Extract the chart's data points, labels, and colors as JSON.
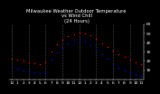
{
  "title": "Milwaukee Weather Outdoor Temperature\nvs Wind Chill\n(24 Hours)",
  "title_fontsize": 3.8,
  "hours": [
    0,
    1,
    2,
    3,
    4,
    5,
    6,
    7,
    8,
    9,
    10,
    11,
    12,
    13,
    14,
    15,
    16,
    17,
    18,
    19,
    20,
    21,
    22,
    23
  ],
  "temp": [
    22,
    21,
    20,
    19,
    18,
    17,
    19,
    30,
    38,
    43,
    47,
    49,
    51,
    50,
    48,
    44,
    39,
    35,
    31,
    27,
    24,
    21,
    19,
    17
  ],
  "wind_chill": [
    13,
    12,
    10,
    9,
    8,
    7,
    8,
    21,
    29,
    34,
    39,
    41,
    43,
    41,
    37,
    33,
    27,
    22,
    17,
    13,
    10,
    8,
    6,
    4
  ],
  "temp_color": "#ff0000",
  "wind_chill_color": "#0000ff",
  "bg_color": "#000000",
  "plot_bg_color": "#000000",
  "grid_color": "#555555",
  "text_color": "#ffffff",
  "ylim": [
    0,
    60
  ],
  "ytick_vals": [
    10,
    20,
    30,
    40,
    50,
    60
  ],
  "ytick_labels": [
    "10",
    "20",
    "30",
    "40",
    "50",
    "60"
  ],
  "xtick_labels": [
    "12",
    "1",
    "2",
    "3",
    "4",
    "5",
    "6",
    "7",
    "8",
    "9",
    "10",
    "11",
    "12",
    "1",
    "2",
    "3",
    "4",
    "5",
    "6",
    "7",
    "8",
    "9",
    "10",
    "11"
  ],
  "xlabel_fontsize": 3.2,
  "ylabel_fontsize": 3.2,
  "marker_size": 1.0,
  "grid_positions": [
    0,
    3,
    6,
    9,
    12,
    15,
    18,
    21
  ]
}
